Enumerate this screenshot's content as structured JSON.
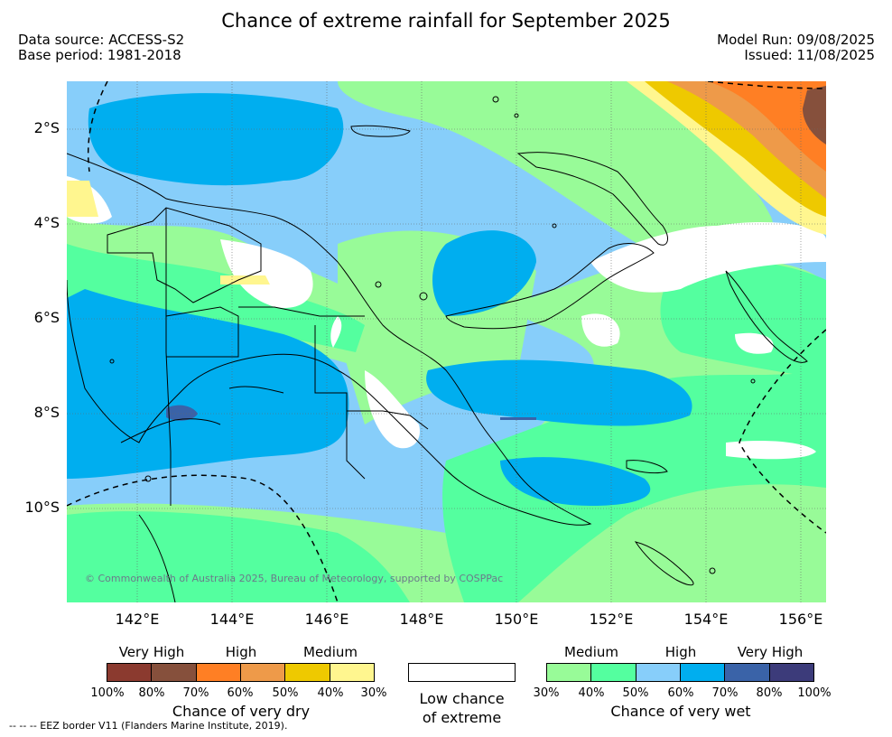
{
  "title": "Chance of extreme rainfall for September 2025",
  "header": {
    "data_source": "Data source: ACCESS-S2",
    "base_period": "Base period: 1981-2018",
    "model_run": "Model Run: 09/08/2025",
    "issued": "Issued: 11/08/2025"
  },
  "map": {
    "lat_labels": [
      "2°S",
      "4°S",
      "6°S",
      "8°S",
      "10°S"
    ],
    "lon_labels": [
      "142°E",
      "144°E",
      "146°E",
      "148°E",
      "150°E",
      "152°E",
      "154°E",
      "156°E"
    ],
    "copyright": "© Commonwealth of Australia 2025, Bureau of Meteorology, supported by COSPPac"
  },
  "legend": {
    "dry": {
      "categories": [
        "Very High",
        "High",
        "Medium"
      ],
      "colors": [
        "#8b3a2f",
        "#86503c",
        "#ff7f24",
        "#ee9a49",
        "#eec900",
        "#fff68f"
      ],
      "ticks": [
        "100%",
        "80%",
        "70%",
        "60%",
        "50%",
        "40%",
        "30%"
      ],
      "title": "Chance of very dry"
    },
    "low": {
      "line1": "Low chance",
      "line2": "of extreme",
      "color": "#ffffff"
    },
    "wet": {
      "categories": [
        "Medium",
        "High",
        "Very High"
      ],
      "colors": [
        "#98fb98",
        "#54ff9f",
        "#87cefa",
        "#00aeef",
        "#3a63a8",
        "#3c3b7a"
      ],
      "ticks": [
        "30%",
        "40%",
        "50%",
        "60%",
        "70%",
        "80%",
        "100%"
      ],
      "title": "Chance of very wet"
    }
  },
  "footnote": "--  --  -- EEZ border V11 (Flanders Marine Institute, 2019)."
}
